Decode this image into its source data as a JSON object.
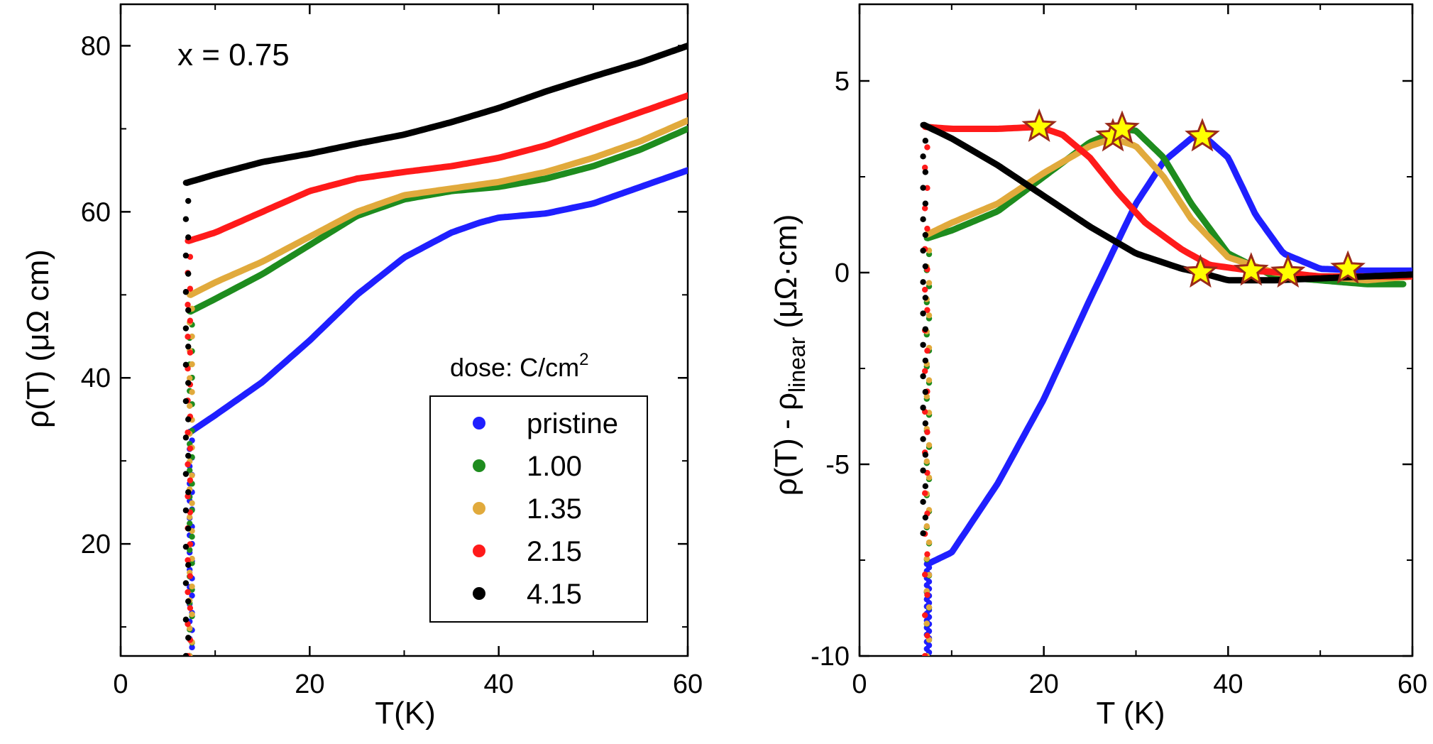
{
  "chart_data": [
    {
      "type": "scatter",
      "panel": "left",
      "annotation": "x = 0.75",
      "xlabel": "T(K)",
      "ylabel": "ρ(T) (μΩ cm)",
      "xlim": [
        0,
        60
      ],
      "ylim": [
        6.5,
        85
      ],
      "xticks": [
        "0",
        "20",
        "40",
        "60"
      ],
      "yticks": [
        "20",
        "40",
        "60",
        "80"
      ],
      "ytick_values": [
        20,
        40,
        60,
        80
      ],
      "xtick_values": [
        0,
        20,
        40,
        60
      ],
      "legend_title": "dose: C/cm",
      "legend_title_sup": "2",
      "series": [
        {
          "name": "pristine",
          "color": "#1f1fff",
          "tc": 7.4,
          "min": 6.5,
          "x": [
            7.4,
            10,
            15,
            20,
            25,
            30,
            35,
            38,
            40,
            45,
            50,
            55,
            60
          ],
          "y": [
            33.5,
            35.5,
            39.5,
            44.5,
            50,
            54.5,
            57.5,
            58.7,
            59.3,
            59.8,
            61,
            63,
            65
          ]
        },
        {
          "name": "1.00",
          "color": "#1e8c1e",
          "tc": 7.4,
          "min": 6.5,
          "x": [
            7.4,
            10,
            15,
            20,
            25,
            30,
            35,
            40,
            45,
            50,
            55,
            60
          ],
          "y": [
            48,
            49.5,
            52.5,
            56,
            59.5,
            61.5,
            62.5,
            63,
            64,
            65.5,
            67.5,
            70
          ]
        },
        {
          "name": "1.35",
          "color": "#e1aa3c",
          "tc": 7.4,
          "min": 6.5,
          "x": [
            7.4,
            10,
            15,
            20,
            25,
            30,
            35,
            40,
            45,
            50,
            55,
            60
          ],
          "y": [
            50,
            51.5,
            54,
            57,
            60,
            62,
            62.8,
            63.6,
            64.8,
            66.5,
            68.5,
            71
          ]
        },
        {
          "name": "2.15",
          "color": "#ff1a1a",
          "tc": 7.2,
          "min": 6.5,
          "x": [
            7.2,
            10,
            15,
            20,
            25,
            30,
            35,
            40,
            45,
            50,
            55,
            60
          ],
          "y": [
            56.5,
            57.5,
            60,
            62.5,
            64,
            64.8,
            65.5,
            66.5,
            68,
            70,
            72,
            74
          ]
        },
        {
          "name": "4.15",
          "color": "#000000",
          "tc": 7.0,
          "min": 6.5,
          "x": [
            7.0,
            10,
            15,
            20,
            25,
            30,
            35,
            40,
            45,
            50,
            55,
            60
          ],
          "y": [
            63.5,
            64.5,
            66,
            67,
            68.2,
            69.3,
            70.8,
            72.5,
            74.5,
            76.3,
            78,
            80
          ]
        }
      ]
    },
    {
      "type": "scatter",
      "panel": "right",
      "xlabel": "T (K)",
      "ylabel_main": "ρ(T) - ρ",
      "ylabel_sub": "linear",
      "ylabel_tail": " (μΩ·cm)",
      "xlim": [
        0,
        60
      ],
      "ylim": [
        -10,
        7
      ],
      "xticks": [
        "0",
        "20",
        "40",
        "60"
      ],
      "yticks": [
        "-10",
        "-5",
        "0",
        "5"
      ],
      "ytick_values": [
        -10,
        -5,
        0,
        5
      ],
      "xtick_values": [
        0,
        20,
        40,
        60
      ],
      "series": [
        {
          "name": "pristine",
          "color": "#1f1fff",
          "tc": 7.4,
          "min": -10,
          "x": [
            7.4,
            10,
            15,
            20,
            25,
            30,
            33,
            36,
            37.2,
            40,
            43,
            46,
            50,
            55,
            60
          ],
          "y": [
            -7.6,
            -7.3,
            -5.5,
            -3.3,
            -0.7,
            1.8,
            2.9,
            3.5,
            3.6,
            3.0,
            1.5,
            0.5,
            0.1,
            0.05,
            0.05
          ]
        },
        {
          "name": "1.00",
          "color": "#1e8c1e",
          "tc": 7.4,
          "min": -10,
          "x": [
            7.4,
            10,
            15,
            20,
            25,
            28.5,
            30,
            33,
            36,
            40,
            45,
            50,
            55,
            59
          ],
          "y": [
            0.9,
            1.1,
            1.6,
            2.5,
            3.4,
            3.75,
            3.7,
            3.0,
            1.8,
            0.5,
            -0.1,
            -0.2,
            -0.3,
            -0.3
          ]
        },
        {
          "name": "1.35",
          "color": "#e1aa3c",
          "tc": 7.4,
          "min": -10,
          "x": [
            7.4,
            10,
            15,
            20,
            25,
            27.5,
            30,
            33,
            36,
            40,
            45,
            50,
            55,
            60
          ],
          "y": [
            1.0,
            1.3,
            1.8,
            2.6,
            3.3,
            3.5,
            3.3,
            2.5,
            1.4,
            0.4,
            0,
            -0.1,
            -0.2,
            -0.1
          ]
        },
        {
          "name": "2.15",
          "color": "#ff1a1a",
          "tc": 7.2,
          "min": -10,
          "x": [
            7.2,
            10,
            15,
            19.5,
            22,
            25,
            28,
            31,
            35,
            38,
            42.5,
            46,
            50,
            55,
            60
          ],
          "y": [
            3.8,
            3.75,
            3.75,
            3.8,
            3.6,
            3.0,
            2.1,
            1.3,
            0.6,
            0.2,
            0.05,
            0,
            -0.1,
            -0.1,
            -0.1
          ]
        },
        {
          "name": "4.15",
          "color": "#000000",
          "tc": 7.0,
          "min": -6.8,
          "x": [
            7.0,
            10,
            15,
            20,
            25,
            30,
            35,
            37,
            40,
            45,
            50,
            55,
            60
          ],
          "y": [
            3.85,
            3.5,
            2.8,
            2.0,
            1.2,
            0.5,
            0.1,
            0,
            -0.2,
            -0.2,
            -0.15,
            -0.1,
            -0.05
          ]
        }
      ],
      "stars": [
        {
          "series": "2.15",
          "x": 19.5,
          "y": 3.8
        },
        {
          "series": "1.35",
          "x": 27.5,
          "y": 3.55
        },
        {
          "series": "1.00",
          "x": 28.5,
          "y": 3.75
        },
        {
          "series": "pristine",
          "x": 37.2,
          "y": 3.55
        },
        {
          "series": "4.15",
          "x": 37,
          "y": 0
        },
        {
          "series": "2.15",
          "x": 42.5,
          "y": 0.05
        },
        {
          "series": "1.00",
          "x": 46.5,
          "y": 0
        },
        {
          "series": "pristine",
          "x": 53,
          "y": 0.1
        }
      ],
      "star_color": "#ffff00",
      "star_edge": "#9a2a1a"
    }
  ]
}
